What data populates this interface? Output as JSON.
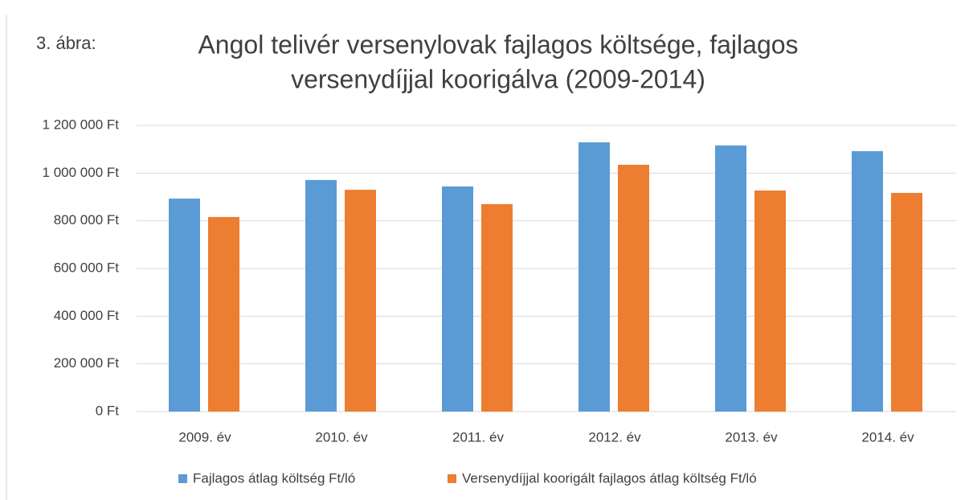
{
  "chart_data": {
    "type": "bar",
    "figure_label": "3. ábra:",
    "title": [
      "Angol telivér versenylovak fajlagos  költsége,  fajlagos",
      "versenydíjjal koorigálva (2009-2014)"
    ],
    "categories": [
      "2009. év",
      "2010. év",
      "2011. év",
      "2012. év",
      "2013. év",
      "2014. év"
    ],
    "series": [
      {
        "name": "Fajlagos átlag költség Ft/ló",
        "color": "#5b9bd5",
        "values": [
          893000,
          971000,
          944000,
          1129000,
          1116000,
          1092000
        ]
      },
      {
        "name": "Versenydíjjal koorigált fajlagos átlag költség Ft/ló",
        "color": "#ed7d31",
        "values": [
          816000,
          930000,
          870000,
          1035000,
          927000,
          917000
        ]
      }
    ],
    "ylim": [
      0,
      1200000
    ],
    "yticks": [
      {
        "value": 0,
        "label": "0 Ft"
      },
      {
        "value": 200000,
        "label": "200 000 Ft"
      },
      {
        "value": 400000,
        "label": "400 000 Ft"
      },
      {
        "value": 600000,
        "label": "600 000 Ft"
      },
      {
        "value": 800000,
        "label": "800 000 Ft"
      },
      {
        "value": 1000000,
        "label": "1 000 000 Ft"
      },
      {
        "value": 1200000,
        "label": "1 200 000 Ft"
      }
    ],
    "grid": true,
    "legend": "bottom"
  }
}
